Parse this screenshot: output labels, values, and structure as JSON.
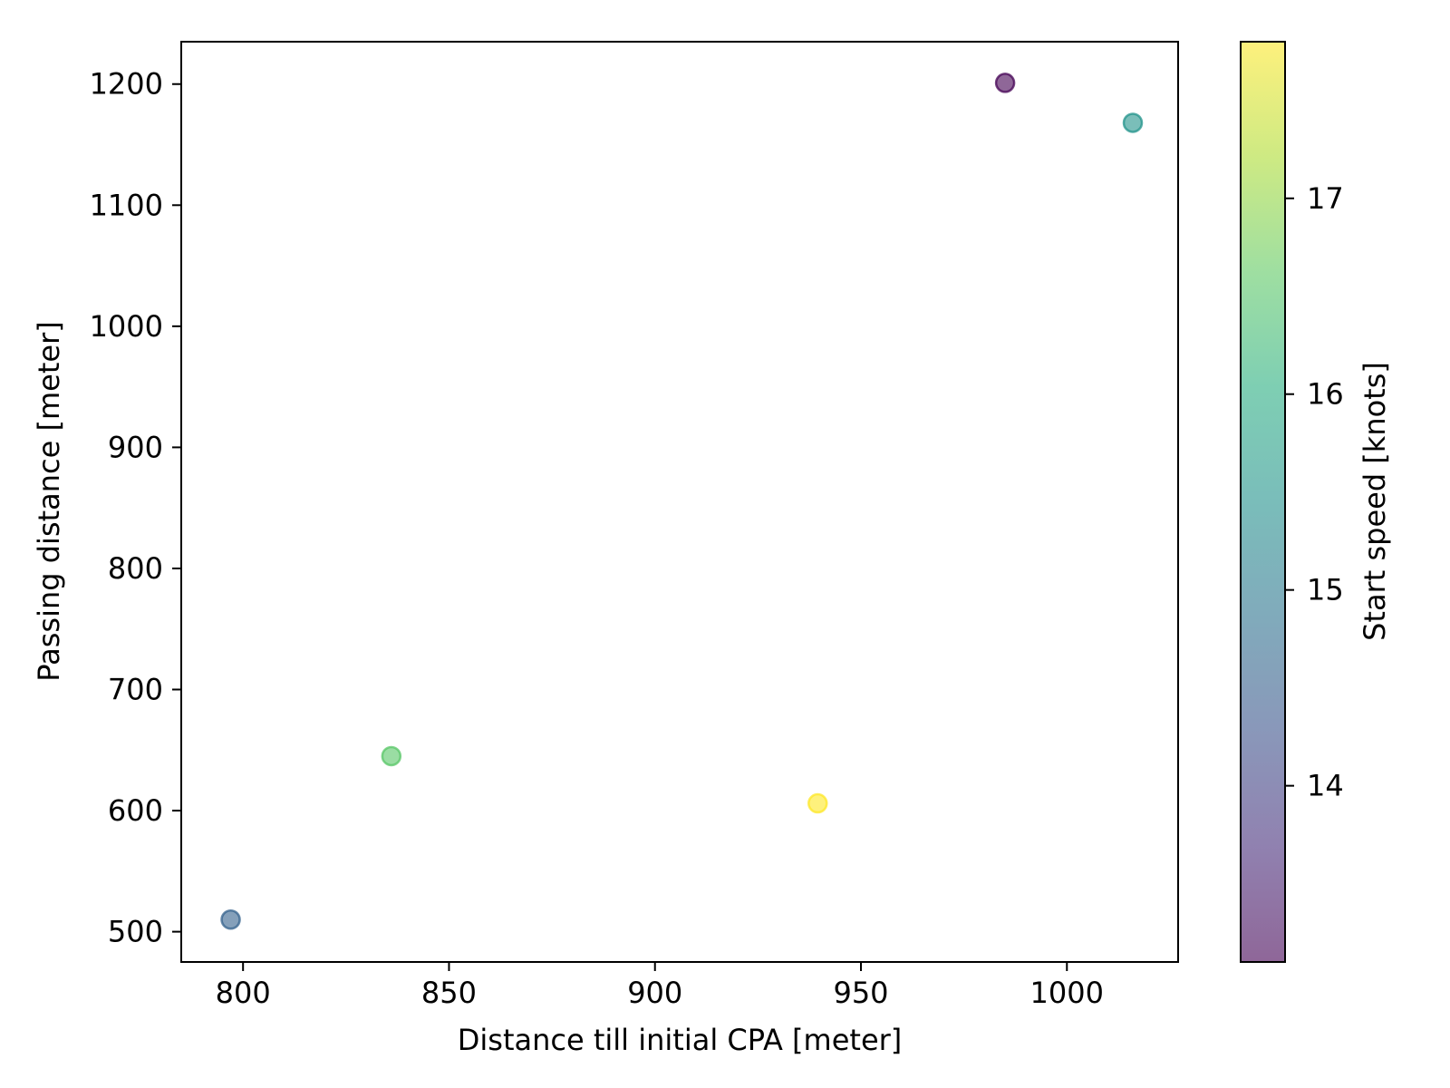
{
  "chart_data": {
    "type": "scatter",
    "title": "",
    "xlabel": "Distance till initial CPA [meter]",
    "ylabel": "Passing distance [meter]",
    "xlim": [
      785,
      1027
    ],
    "ylim": [
      475,
      1235
    ],
    "xticks": [
      800,
      850,
      900,
      950,
      1000
    ],
    "yticks": [
      500,
      600,
      700,
      800,
      900,
      1000,
      1100,
      1200
    ],
    "grid": false,
    "colorbar": {
      "label": "Start speed [knots]",
      "colormap": "viridis",
      "range": [
        13.1,
        17.8
      ],
      "ticks": [
        14,
        15,
        16,
        17
      ]
    },
    "points": [
      {
        "x": 797,
        "y": 510,
        "speed": 14.55
      },
      {
        "x": 836,
        "y": 645,
        "speed": 16.55
      },
      {
        "x": 939.5,
        "y": 606,
        "speed": 17.8
      },
      {
        "x": 985,
        "y": 1201,
        "speed": 13.1
      },
      {
        "x": 1016,
        "y": 1168,
        "speed": 15.5
      }
    ],
    "marker_alpha": 0.6
  }
}
